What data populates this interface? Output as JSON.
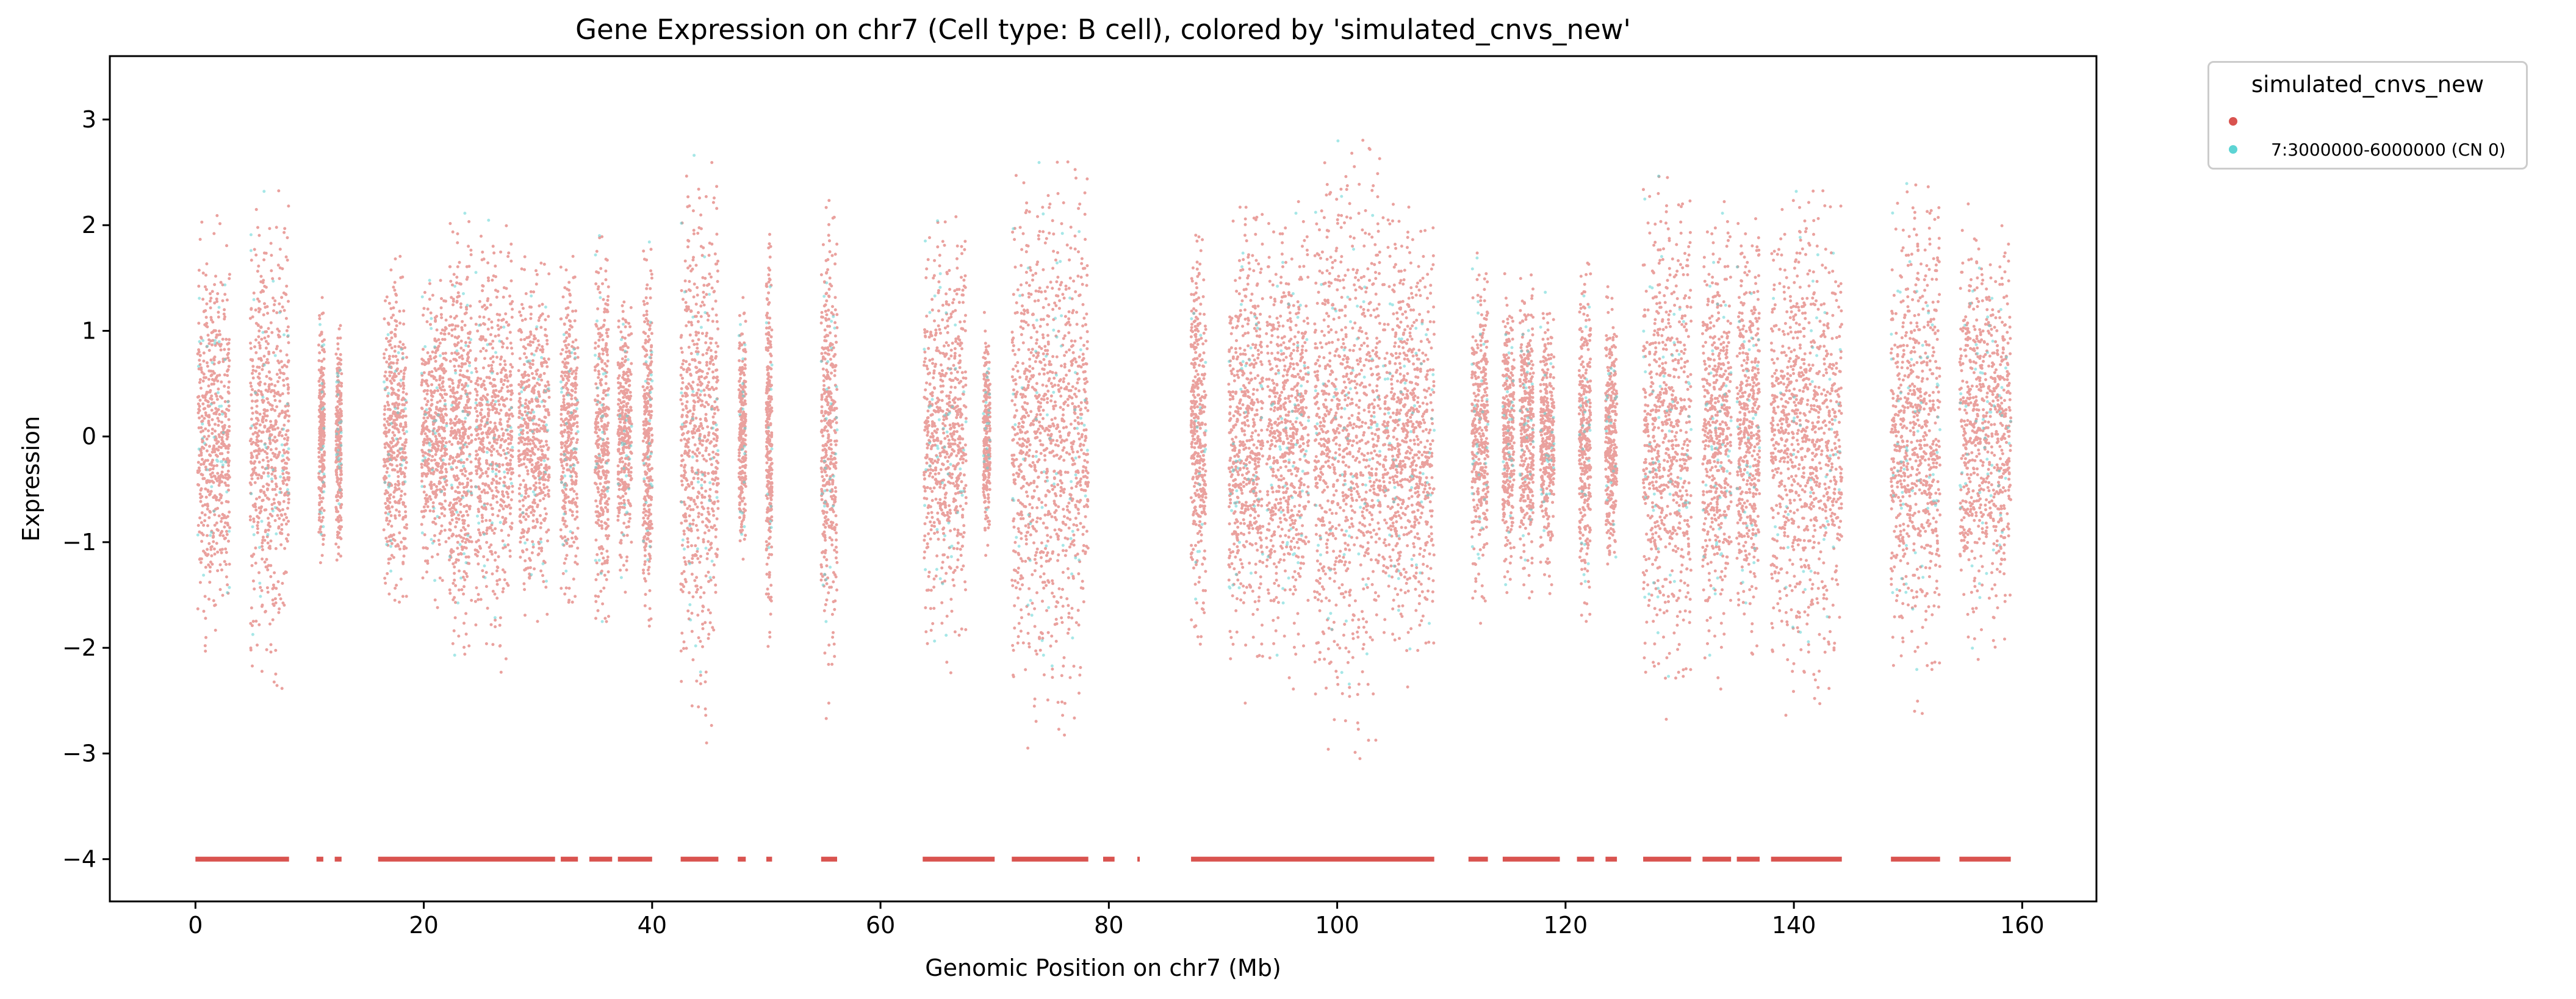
{
  "chart_data": {
    "type": "scatter",
    "title": "Gene Expression on chr7 (Cell type: B cell), colored by 'simulated_cnvs_new'",
    "xlabel": "Genomic Position on chr7 (Mb)",
    "ylabel": "Expression",
    "xlim": [
      -7.5,
      166.5
    ],
    "ylim": [
      -4.4,
      3.6
    ],
    "xticks": [
      "0",
      "20",
      "40",
      "60",
      "80",
      "100",
      "120",
      "140",
      "160"
    ],
    "yticks": [
      "−4",
      "−3",
      "−2",
      "−1",
      "0",
      "1",
      "2",
      "3"
    ],
    "grid": false,
    "legend_position": "outside-right",
    "legend_title": "simulated_cnvs_new",
    "series": [
      {
        "name": "",
        "color": "#d9534f",
        "bands_mb": [
          [
            0.2,
            3.0,
            1.4,
            1.4
          ],
          [
            4.8,
            8.2,
            1.8,
            1.6
          ],
          [
            10.8,
            11.3,
            0.9,
            0.8
          ],
          [
            12.3,
            12.8,
            0.9,
            0.8
          ],
          [
            16.5,
            18.5,
            1.2,
            1.2
          ],
          [
            19.8,
            22.0,
            1.0,
            1.1
          ],
          [
            22.2,
            24.2,
            1.5,
            1.6
          ],
          [
            24.5,
            27.8,
            1.5,
            1.5
          ],
          [
            28.3,
            31.0,
            1.2,
            1.2
          ],
          [
            32.0,
            33.5,
            1.2,
            1.2
          ],
          [
            35.0,
            36.2,
            1.3,
            1.4
          ],
          [
            37.0,
            38.2,
            1.0,
            1.0
          ],
          [
            39.2,
            40.0,
            1.3,
            1.4
          ],
          [
            42.5,
            45.8,
            1.9,
            2.0
          ],
          [
            47.6,
            48.2,
            0.9,
            0.8
          ],
          [
            50.0,
            50.5,
            1.4,
            1.4
          ],
          [
            54.8,
            56.2,
            1.5,
            1.8
          ],
          [
            63.8,
            67.5,
            1.4,
            1.5
          ],
          [
            69.0,
            69.6,
            0.8,
            0.8
          ],
          [
            71.5,
            78.2,
            1.8,
            2.0
          ],
          [
            87.2,
            88.5,
            1.4,
            1.5
          ],
          [
            90.5,
            93.5,
            1.5,
            1.8
          ],
          [
            93.8,
            97.5,
            1.5,
            1.6
          ],
          [
            98.0,
            103.8,
            2.0,
            2.1
          ],
          [
            104.0,
            108.5,
            1.5,
            1.6
          ],
          [
            111.8,
            113.2,
            1.2,
            1.2
          ],
          [
            114.5,
            115.5,
            1.1,
            1.0
          ],
          [
            116.0,
            117.2,
            1.2,
            1.1
          ],
          [
            117.8,
            119.0,
            1.0,
            1.0
          ],
          [
            121.2,
            122.2,
            1.2,
            1.2
          ],
          [
            123.5,
            124.5,
            1.0,
            1.0
          ],
          [
            126.8,
            131.0,
            1.7,
            1.8
          ],
          [
            132.0,
            134.5,
            1.5,
            1.6
          ],
          [
            135.0,
            137.0,
            1.5,
            1.6
          ],
          [
            138.0,
            144.2,
            1.6,
            1.8
          ],
          [
            148.5,
            152.8,
            1.6,
            1.8
          ],
          [
            154.5,
            159.0,
            1.5,
            1.5
          ]
        ],
        "floor_value": -4,
        "floor_segments_mb": [
          [
            0.0,
            8.2
          ],
          [
            10.6,
            11.2
          ],
          [
            12.2,
            12.8
          ],
          [
            16.0,
            31.5
          ],
          [
            32.0,
            33.5
          ],
          [
            34.5,
            36.5
          ],
          [
            37.0,
            40.0
          ],
          [
            42.5,
            45.8
          ],
          [
            47.5,
            48.2
          ],
          [
            50.0,
            50.5
          ],
          [
            54.8,
            56.2
          ],
          [
            63.7,
            70.0
          ],
          [
            71.5,
            78.2
          ],
          [
            79.5,
            80.5
          ],
          [
            82.5,
            82.7
          ],
          [
            87.2,
            108.5
          ],
          [
            111.5,
            113.2
          ],
          [
            114.5,
            119.5
          ],
          [
            121.0,
            122.5
          ],
          [
            123.5,
            124.5
          ],
          [
            126.8,
            131.0
          ],
          [
            132.0,
            134.5
          ],
          [
            135.0,
            137.0
          ],
          [
            138.0,
            144.2
          ],
          [
            148.5,
            152.8
          ],
          [
            154.5,
            159.0
          ]
        ]
      },
      {
        "name": "7:3000000-6000000 (CN 0)",
        "color": "#5dd4d4",
        "mixed_into_bands": true
      }
    ]
  }
}
